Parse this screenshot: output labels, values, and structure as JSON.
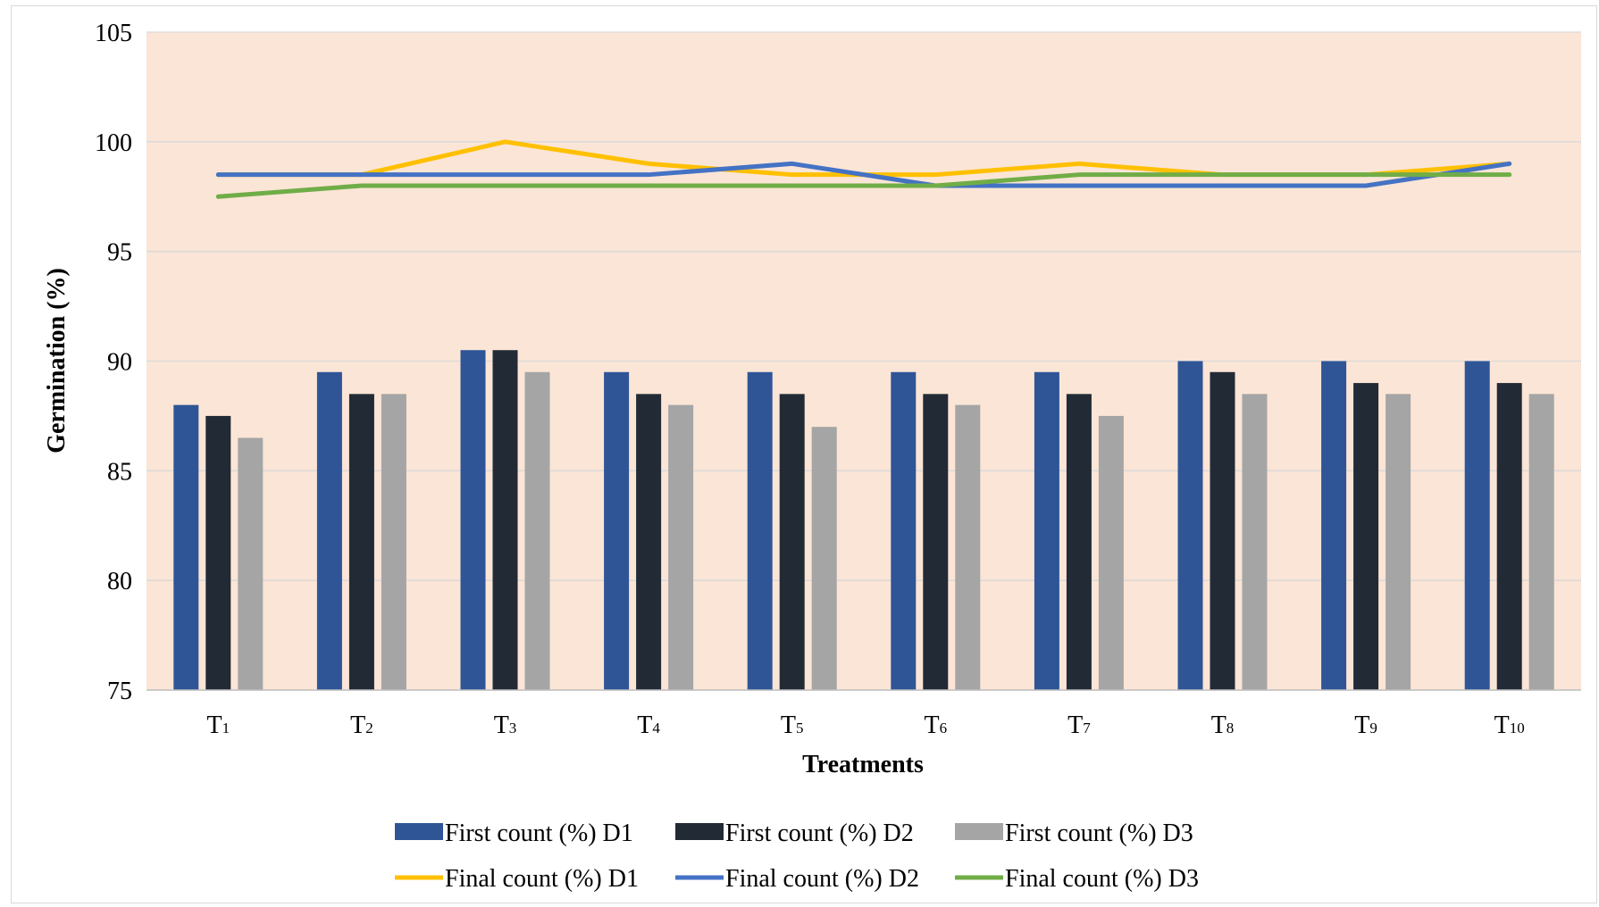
{
  "chart_data": {
    "type": "bar+line",
    "title": "",
    "xlabel": "Treatments",
    "ylabel": "Germination (%)",
    "ylim": [
      75,
      105
    ],
    "yticks": [
      75,
      80,
      85,
      90,
      95,
      100,
      105
    ],
    "grid": true,
    "legend_position": "bottom",
    "categories": [
      {
        "base": "T",
        "sub": "1"
      },
      {
        "base": "T",
        "sub": "2"
      },
      {
        "base": "T",
        "sub": "3"
      },
      {
        "base": "T",
        "sub": "4"
      },
      {
        "base": "T",
        "sub": "5"
      },
      {
        "base": "T",
        "sub": "6"
      },
      {
        "base": "T",
        "sub": "7"
      },
      {
        "base": "T",
        "sub": "8"
      },
      {
        "base": "T",
        "sub": "9"
      },
      {
        "base": "T",
        "sub": "10"
      }
    ],
    "bar_series": [
      {
        "name": "First count (%)  D1",
        "color": "#2f5597",
        "values": [
          88,
          89.5,
          90.5,
          89.5,
          89.5,
          89.5,
          89.5,
          90,
          90,
          90
        ]
      },
      {
        "name": "First count (%)  D2",
        "color": "#222a35",
        "values": [
          87.5,
          88.5,
          90.5,
          88.5,
          88.5,
          88.5,
          88.5,
          89.5,
          89,
          89
        ]
      },
      {
        "name": "First count (%)  D3",
        "color": "#a5a5a5",
        "values": [
          86.5,
          88.5,
          89.5,
          88,
          87,
          88,
          87.5,
          88.5,
          88.5,
          88.5
        ]
      }
    ],
    "line_series": [
      {
        "name": "Final count (%) D1",
        "color": "#ffc000",
        "values": [
          98.5,
          98.5,
          100,
          99,
          98.5,
          98.5,
          99,
          98.5,
          98.5,
          99
        ]
      },
      {
        "name": "Final count (%) D2",
        "color": "#4472c4",
        "values": [
          98.5,
          98.5,
          98.5,
          98.5,
          99,
          98,
          98,
          98,
          98,
          99
        ]
      },
      {
        "name": "Final count (%) D3",
        "color": "#70ad47",
        "values": [
          97.5,
          98,
          98,
          98,
          98,
          98,
          98.5,
          98.5,
          98.5,
          98.5
        ]
      }
    ],
    "colors": {
      "plot_background": "#fbe5d6",
      "gridline": "#d9d9d9"
    }
  }
}
